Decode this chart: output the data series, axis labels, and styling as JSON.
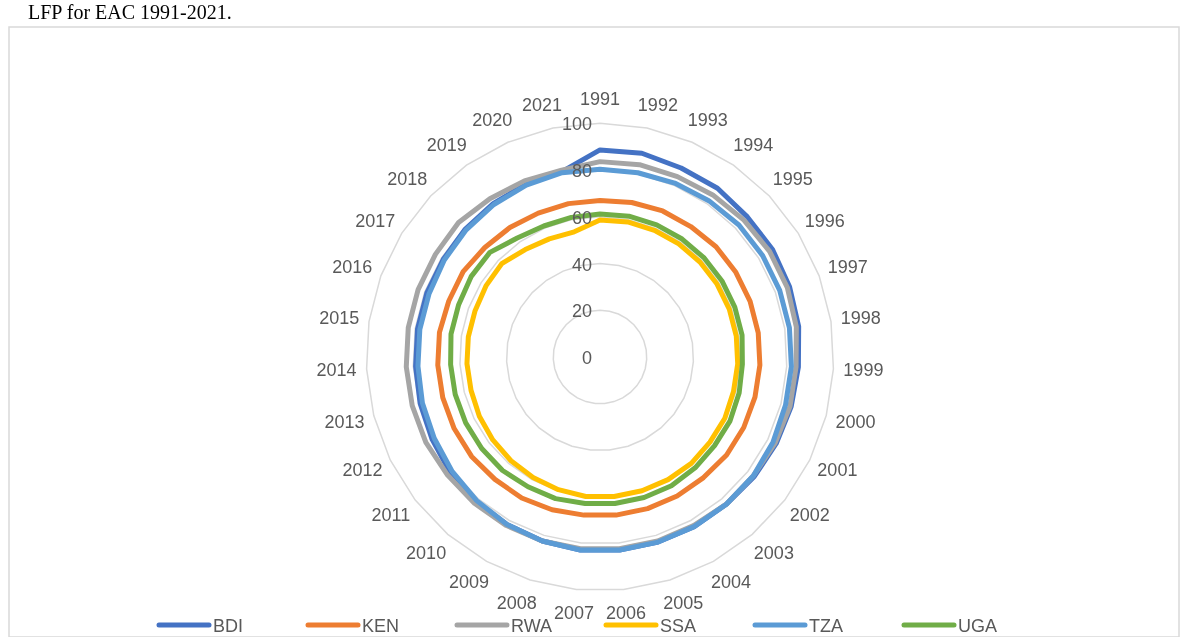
{
  "chart_data": {
    "type": "radar",
    "title": "LFP for EAC 1991-2021.",
    "categories": [
      "1991",
      "1992",
      "1993",
      "1994",
      "1995",
      "1996",
      "1997",
      "1998",
      "1999",
      "2000",
      "2001",
      "2002",
      "2003",
      "2004",
      "2005",
      "2006",
      "2007",
      "2008",
      "2009",
      "2010",
      "2011",
      "2012",
      "2013",
      "2014",
      "2015",
      "2016",
      "2017",
      "2018",
      "2019",
      "2020",
      "2021"
    ],
    "ylim": [
      0,
      100
    ],
    "yticks": [
      0,
      20,
      40,
      60,
      80,
      100
    ],
    "grid": true,
    "legend": "bottom",
    "marker": "none",
    "series": [
      {
        "name": "BDI",
        "color": "#4472c4",
        "values": [
          88.6,
          89,
          88,
          88,
          87,
          87,
          86.5,
          86,
          85,
          84.5,
          84,
          83.5,
          83,
          83,
          83,
          83,
          83,
          82.5,
          82,
          81.5,
          81,
          80,
          79.5,
          79,
          79,
          79,
          79,
          79.5,
          80,
          80.5,
          81
        ]
      },
      {
        "name": "KEN",
        "color": "#ed7d31",
        "values": [
          67,
          67.5,
          68,
          68,
          68.5,
          68.5,
          68.5,
          68.5,
          68.5,
          68.5,
          68.5,
          68.5,
          68,
          68,
          68,
          68,
          68,
          68.5,
          69,
          69,
          69.5,
          69.5,
          69.5,
          69.5,
          69.5,
          69,
          69,
          68,
          67.5,
          67,
          67
        ]
      },
      {
        "name": "RWA",
        "color": "#a5a5a5",
        "values": [
          83.6,
          84,
          84,
          84.5,
          85,
          85.5,
          85.5,
          85,
          84,
          84,
          83.5,
          83,
          83,
          82.5,
          82.5,
          82.5,
          82.5,
          82.5,
          82.5,
          82.5,
          82.5,
          83,
          83,
          83,
          83,
          83,
          83,
          83.5,
          82.5,
          82,
          81.6
        ]
      },
      {
        "name": "SSA",
        "color": "#ffc000",
        "values": [
          58.6,
          59,
          59,
          59,
          59,
          59,
          59,
          59,
          59,
          59,
          59.5,
          59.5,
          60,
          60,
          60,
          60,
          60,
          59.5,
          59,
          58.5,
          58,
          57.5,
          57,
          57,
          57,
          57,
          57.5,
          58,
          56,
          55,
          54.7
        ]
      },
      {
        "name": "TZA",
        "color": "#5b9bd5",
        "values": [
          80.3,
          80.5,
          81,
          81.5,
          82,
          82,
          82,
          82,
          82,
          82,
          82.5,
          83,
          83,
          83,
          83,
          83,
          83,
          82.5,
          82,
          81,
          80,
          79,
          78.5,
          78,
          78,
          78,
          78.5,
          79,
          79.5,
          80,
          80.5
        ]
      },
      {
        "name": "UGA",
        "color": "#70ad47",
        "values": [
          61.2,
          61.5,
          61.5,
          61.5,
          61.5,
          61.5,
          61.5,
          61.5,
          61,
          61.5,
          62,
          62,
          62.5,
          63,
          63,
          63,
          63,
          63.5,
          63.5,
          64,
          64,
          64,
          64,
          64,
          64.5,
          64.5,
          65,
          65,
          62,
          61,
          61
        ]
      }
    ]
  }
}
